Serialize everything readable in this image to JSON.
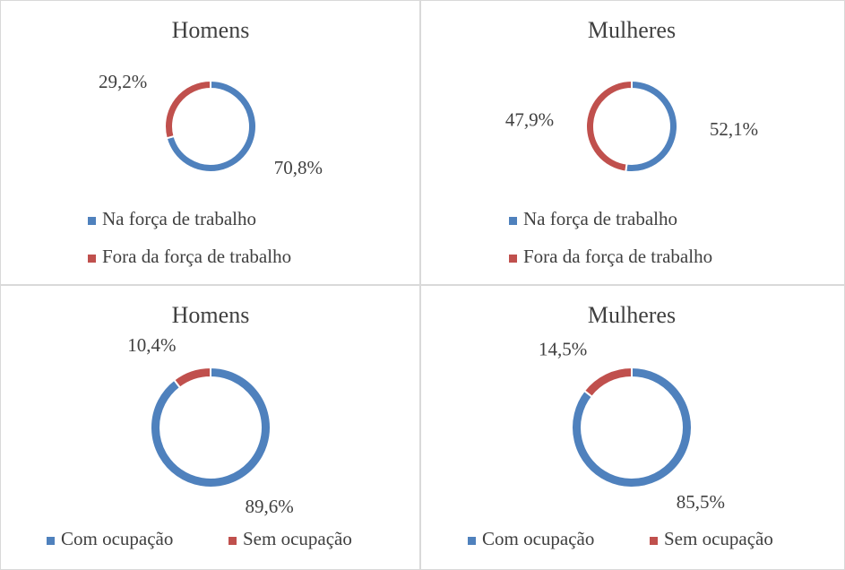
{
  "chart_data": [
    {
      "type": "pie",
      "title": "Homens",
      "categories": [
        "Na força de trabalho",
        "Fora da força de trabalho"
      ],
      "values": [
        70.8,
        29.2
      ],
      "value_labels": [
        "70,8%",
        "29,2%"
      ],
      "colors": [
        "#4f81bd",
        "#c0504d"
      ]
    },
    {
      "type": "pie",
      "title": "Mulheres",
      "categories": [
        "Na força de trabalho",
        "Fora da força de trabalho"
      ],
      "values": [
        52.1,
        47.9
      ],
      "value_labels": [
        "52,1%",
        "47,9%"
      ],
      "colors": [
        "#4f81bd",
        "#c0504d"
      ]
    },
    {
      "type": "pie",
      "title": "Homens",
      "categories": [
        "Com ocupação",
        "Sem ocupação"
      ],
      "values": [
        89.6,
        10.4
      ],
      "value_labels": [
        "89,6%",
        "10,4%"
      ],
      "colors": [
        "#4f81bd",
        "#c0504d"
      ]
    },
    {
      "type": "pie",
      "title": "Mulheres",
      "categories": [
        "Com ocupação",
        "Sem ocupação"
      ],
      "values": [
        85.5,
        14.5
      ],
      "value_labels": [
        "85,5%",
        "14,5%"
      ],
      "colors": [
        "#4f81bd",
        "#c0504d"
      ]
    }
  ]
}
